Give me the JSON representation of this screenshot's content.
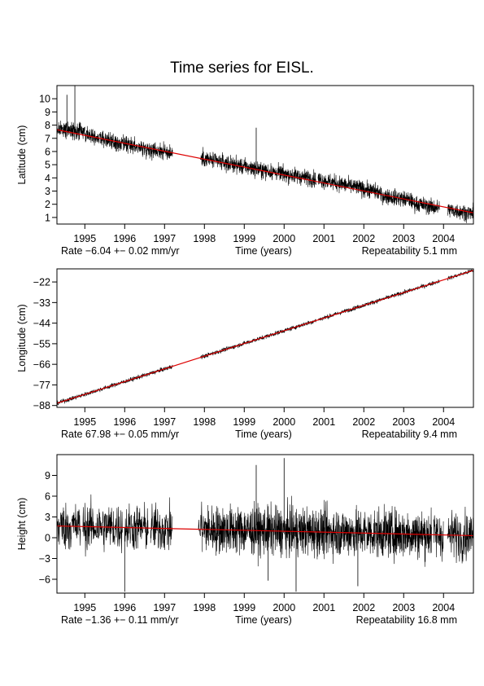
{
  "title": "Time series for EISL.",
  "chart_data": [
    {
      "type": "line",
      "ylabel": "Latitude (cm)",
      "xlabel": "Time (years)",
      "xlim": [
        1994.3,
        2004.75
      ],
      "ylim": [
        0.5,
        11.0
      ],
      "xticks": [
        1995,
        1996,
        1997,
        1998,
        1999,
        2000,
        2001,
        2002,
        2003,
        2004
      ],
      "yticks": [
        1,
        2,
        3,
        4,
        5,
        6,
        7,
        8,
        9,
        10
      ],
      "rate_text": "Rate −6.04 +− 0.02 mm/yr",
      "repeatability_text": "Repeatability 5.1 mm",
      "trend": {
        "x": [
          1994.3,
          2004.75
        ],
        "y": [
          7.65,
          1.35
        ]
      },
      "trend_color": "#dd0000",
      "series_color": "#000000",
      "noise_amplitude": 0.6,
      "spikes": [
        {
          "x": 1994.75,
          "y": 11.0
        },
        {
          "x": 1994.55,
          "y": 10.3
        },
        {
          "x": 1999.3,
          "y": 7.8
        }
      ],
      "segments": [
        {
          "x": [
            1994.3,
            1995.0
          ],
          "y": [
            7.7,
            7.5
          ],
          "density": 0.004
        },
        {
          "x": [
            1995.0,
            1995.8
          ],
          "y": [
            7.4,
            6.6
          ],
          "density": 0.004
        },
        {
          "x": [
            1995.8,
            1997.2
          ],
          "y": [
            6.6,
            5.9
          ],
          "density": 0.004
        },
        {
          "x": [
            1997.9,
            1999.6
          ],
          "y": [
            5.5,
            4.5
          ],
          "density": 0.004
        },
        {
          "x": [
            1999.6,
            2000.8
          ],
          "y": [
            4.5,
            3.9
          ],
          "density": 0.004
        },
        {
          "x": [
            2000.85,
            2002.4
          ],
          "y": [
            3.9,
            2.9
          ],
          "density": 0.004
        },
        {
          "x": [
            2002.4,
            2003.2
          ],
          "y": [
            2.7,
            2.3
          ],
          "density": 0.004
        },
        {
          "x": [
            2003.2,
            2003.9
          ],
          "y": [
            2.1,
            1.7
          ],
          "density": 0.004
        },
        {
          "x": [
            2004.1,
            2004.75
          ],
          "y": [
            1.6,
            1.3
          ],
          "density": 0.004
        }
      ]
    },
    {
      "type": "line",
      "ylabel": "Longitude (cm)",
      "xlabel": "Time (years)",
      "xlim": [
        1994.3,
        2004.75
      ],
      "ylim": [
        -89,
        -15
      ],
      "xticks": [
        1995,
        1996,
        1997,
        1998,
        1999,
        2000,
        2001,
        2002,
        2003,
        2004
      ],
      "yticks": [
        -88,
        -77,
        -66,
        -55,
        -44,
        -33,
        -22
      ],
      "ytick_labels": [
        "−88",
        "−77",
        "−66",
        "−55",
        "−44",
        "−33",
        "−22"
      ],
      "rate_text": "Rate 67.98 +− 0.05 mm/yr",
      "repeatability_text": "Repeatability 9.4 mm",
      "trend": {
        "x": [
          1994.3,
          2004.75
        ],
        "y": [
          -86.8,
          -15.8
        ]
      },
      "trend_color": "#dd0000",
      "series_color": "#000000",
      "noise_amplitude": 1.1,
      "spikes": [],
      "segments": [
        {
          "x": [
            1994.3,
            1997.2
          ],
          "y": [
            -86.8,
            -67.1
          ],
          "density": 0.004
        },
        {
          "x": [
            1997.9,
            2000.8
          ],
          "y": [
            -62.3,
            -42.6
          ],
          "density": 0.004
        },
        {
          "x": [
            2000.85,
            2003.2
          ],
          "y": [
            -42.2,
            -26.3
          ],
          "density": 0.004
        },
        {
          "x": [
            2003.2,
            2003.9
          ],
          "y": [
            -26.3,
            -21.5
          ],
          "density": 0.006
        },
        {
          "x": [
            2004.1,
            2004.75
          ],
          "y": [
            -20.2,
            -15.8
          ],
          "density": 0.006
        }
      ]
    },
    {
      "type": "line",
      "ylabel": "Height (cm)",
      "xlabel": "Time (years)",
      "xlim": [
        1994.3,
        2004.75
      ],
      "ylim": [
        -8,
        12
      ],
      "xticks": [
        1995,
        1996,
        1997,
        1998,
        1999,
        2000,
        2001,
        2002,
        2003,
        2004
      ],
      "yticks": [
        -6,
        -3,
        0,
        3,
        6,
        9
      ],
      "ytick_labels": [
        "−6",
        "−3",
        "0",
        "3",
        "6",
        "9"
      ],
      "rate_text": "Rate −1.36 +− 0.11 mm/yr",
      "repeatability_text": "Repeatability 16.8 mm",
      "trend": {
        "x": [
          1994.3,
          2004.75
        ],
        "y": [
          1.7,
          0.3
        ]
      },
      "trend_color": "#dd0000",
      "series_color": "#000000",
      "noise_amplitude": 3.4,
      "spikes": [
        {
          "x": 1996.0,
          "y": -7.8
        },
        {
          "x": 1999.6,
          "y": -6.2
        },
        {
          "x": 2000.0,
          "y": 11.5
        },
        {
          "x": 2000.3,
          "y": -7.8
        },
        {
          "x": 2001.85,
          "y": -7.0
        },
        {
          "x": 1999.3,
          "y": 10.5
        }
      ],
      "segments": [
        {
          "x": [
            1994.3,
            1994.9
          ],
          "y": [
            1.7,
            1.6
          ],
          "density": 0.006
        },
        {
          "x": [
            1994.95,
            1995.95
          ],
          "y": [
            1.6,
            1.5
          ],
          "density": 0.006
        },
        {
          "x": [
            1996.0,
            1996.6
          ],
          "y": [
            1.5,
            1.4
          ],
          "density": 0.006
        },
        {
          "x": [
            1996.65,
            1997.2
          ],
          "y": [
            1.4,
            1.3
          ],
          "density": 0.006
        },
        {
          "x": [
            1997.85,
            1997.95
          ],
          "y": [
            1.2,
            1.2
          ],
          "density": 0.01
        },
        {
          "x": [
            1997.95,
            2003.7
          ],
          "y": [
            1.2,
            0.5
          ],
          "density": 0.004
        },
        {
          "x": [
            2003.75,
            2004.0
          ],
          "y": [
            0.5,
            0.4
          ],
          "density": 0.006
        },
        {
          "x": [
            2004.1,
            2004.75
          ],
          "y": [
            0.4,
            0.3
          ],
          "density": 0.006
        }
      ]
    }
  ]
}
